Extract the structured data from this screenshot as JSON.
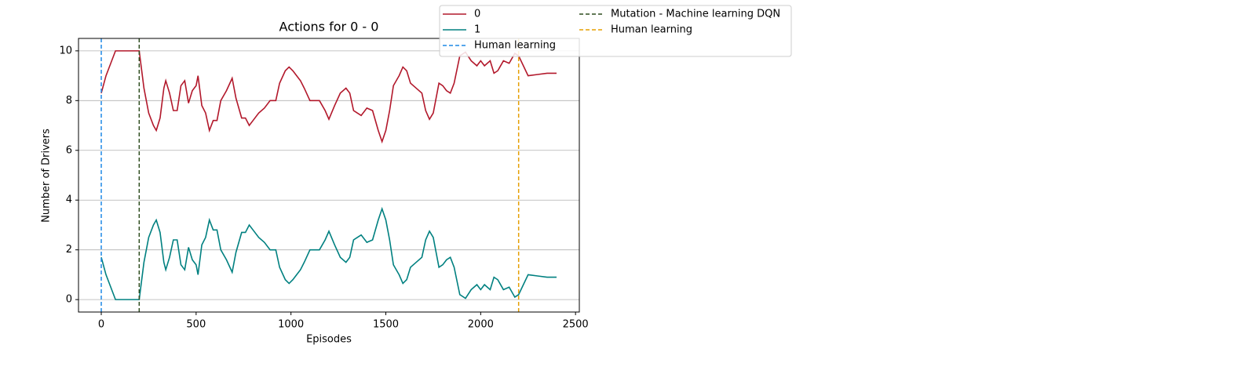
{
  "chart_data": {
    "type": "line",
    "title": "Actions for 0 - 0",
    "x_label": "Episodes",
    "y_label": "Number of Drivers",
    "xlim": [
      -120,
      2520
    ],
    "xticks": [
      0,
      500,
      1000,
      1500,
      2000,
      2500
    ],
    "ylim": [
      -0.5,
      10.5
    ],
    "yticks": [
      0,
      2,
      4,
      6,
      8,
      10
    ],
    "grid": "y",
    "x": [
      0,
      25,
      50,
      75,
      100,
      150,
      200,
      225,
      250,
      275,
      290,
      310,
      330,
      340,
      360,
      380,
      400,
      420,
      440,
      460,
      480,
      500,
      510,
      530,
      550,
      570,
      590,
      610,
      630,
      660,
      690,
      710,
      740,
      760,
      780,
      800,
      830,
      860,
      890,
      920,
      940,
      970,
      990,
      1010,
      1030,
      1050,
      1070,
      1100,
      1150,
      1180,
      1200,
      1230,
      1260,
      1290,
      1310,
      1330,
      1350,
      1370,
      1400,
      1430,
      1460,
      1480,
      1500,
      1520,
      1540,
      1570,
      1590,
      1610,
      1630,
      1660,
      1690,
      1710,
      1730,
      1750,
      1780,
      1800,
      1820,
      1840,
      1860,
      1890,
      1920,
      1950,
      1980,
      2000,
      2020,
      2050,
      2070,
      2090,
      2120,
      2150,
      2180,
      2200,
      2250,
      2300,
      2350,
      2400
    ],
    "series": [
      {
        "name": "0",
        "color": "#b2182b",
        "values": [
          8.3,
          9.0,
          9.5,
          10,
          10,
          10,
          10,
          8.5,
          7.5,
          7.0,
          6.8,
          7.3,
          8.5,
          8.8,
          8.3,
          7.6,
          7.6,
          8.6,
          8.8,
          7.9,
          8.4,
          8.6,
          9.0,
          7.8,
          7.5,
          6.8,
          7.2,
          7.2,
          8.0,
          8.4,
          8.9,
          8.1,
          7.3,
          7.3,
          7.0,
          7.2,
          7.5,
          7.7,
          8.0,
          8.0,
          8.7,
          9.2,
          9.35,
          9.2,
          9.0,
          8.8,
          8.5,
          8.0,
          8.0,
          7.6,
          7.25,
          7.8,
          8.3,
          8.5,
          8.3,
          7.6,
          7.5,
          7.4,
          7.7,
          7.6,
          6.8,
          6.35,
          6.8,
          7.6,
          8.6,
          9.0,
          9.35,
          9.2,
          8.7,
          8.5,
          8.3,
          7.6,
          7.25,
          7.5,
          8.7,
          8.6,
          8.4,
          8.3,
          8.7,
          9.8,
          9.95,
          9.6,
          9.4,
          9.6,
          9.4,
          9.6,
          9.1,
          9.2,
          9.6,
          9.5,
          9.9,
          9.8,
          9.0,
          9.05,
          9.1,
          9.1
        ]
      },
      {
        "name": "1",
        "color": "#008080",
        "values": [
          1.7,
          1.0,
          0.5,
          0,
          0,
          0,
          0,
          1.5,
          2.5,
          3.0,
          3.2,
          2.7,
          1.5,
          1.2,
          1.7,
          2.4,
          2.4,
          1.4,
          1.2,
          2.1,
          1.6,
          1.4,
          1.0,
          2.2,
          2.5,
          3.2,
          2.8,
          2.8,
          2.0,
          1.6,
          1.1,
          1.9,
          2.7,
          2.7,
          3.0,
          2.8,
          2.5,
          2.3,
          2.0,
          2.0,
          1.3,
          0.8,
          0.65,
          0.8,
          1.0,
          1.2,
          1.5,
          2.0,
          2.0,
          2.4,
          2.75,
          2.2,
          1.7,
          1.5,
          1.7,
          2.4,
          2.5,
          2.6,
          2.3,
          2.4,
          3.2,
          3.65,
          3.2,
          2.4,
          1.4,
          1.0,
          0.65,
          0.8,
          1.3,
          1.5,
          1.7,
          2.4,
          2.75,
          2.5,
          1.3,
          1.4,
          1.6,
          1.7,
          1.3,
          0.2,
          0.05,
          0.4,
          0.6,
          0.4,
          0.6,
          0.4,
          0.9,
          0.8,
          0.4,
          0.5,
          0.1,
          0.2,
          1.0,
          0.95,
          0.9,
          0.9
        ]
      }
    ],
    "vlines": [
      {
        "name": "Human learning",
        "x": 0,
        "color": "#1e88e5"
      },
      {
        "name": "Mutation - Machine learning DQN",
        "x": 200,
        "color": "#2e4d1f"
      },
      {
        "name": "Human learning",
        "x": 2200,
        "color": "#e69f00"
      }
    ]
  }
}
